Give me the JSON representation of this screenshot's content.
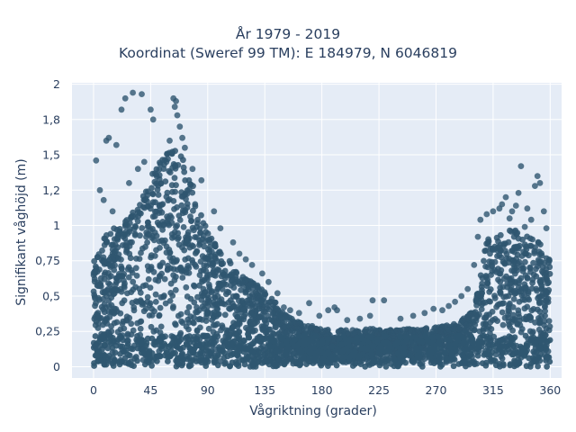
{
  "chart_data": {
    "type": "scatter",
    "title": [
      "År 1979 - 2019",
      "Koordinat (Sweref 99 TM): E 184979, N 6046819"
    ],
    "xlabel": "Vågriktning (grader)",
    "ylabel": "Signifikant våghöjd (m)",
    "xlim": [
      -17,
      369
    ],
    "ylim": [
      -0.08,
      2.01
    ],
    "xticks": [
      0,
      45,
      90,
      135,
      180,
      225,
      270,
      315,
      360
    ],
    "xtick_labels": [
      "0",
      "45",
      "90",
      "135",
      "180",
      "225",
      "270",
      "315",
      "360"
    ],
    "yticks": [
      0,
      0.25,
      0.5,
      0.75,
      1,
      1.25,
      1.5,
      1.75,
      2
    ],
    "ytick_labels": [
      "0",
      "0,25",
      "0,5",
      "0,75",
      "1",
      "1,2",
      "1,5",
      "1,8",
      "2"
    ],
    "grid": true,
    "marker_color": "#2f5670",
    "background": "#e5ecf6",
    "envelope": {
      "x": [
        0,
        10,
        20,
        30,
        40,
        50,
        60,
        70,
        80,
        90,
        100,
        110,
        120,
        130,
        140,
        150,
        160,
        170,
        180,
        190,
        200,
        210,
        220,
        230,
        240,
        250,
        260,
        270,
        280,
        290,
        300,
        310,
        320,
        330,
        340,
        350,
        360
      ],
      "ymax": [
        0.75,
        0.95,
        1.0,
        1.1,
        1.25,
        1.45,
        1.55,
        1.5,
        1.25,
        0.95,
        0.82,
        0.72,
        0.62,
        0.58,
        0.5,
        0.38,
        0.32,
        0.3,
        0.27,
        0.26,
        0.26,
        0.26,
        0.27,
        0.26,
        0.26,
        0.27,
        0.27,
        0.28,
        0.3,
        0.33,
        0.4,
        0.9,
        0.95,
        0.98,
        0.95,
        0.9,
        0.75
      ]
    },
    "outliers": [
      {
        "x": 2,
        "y": 1.46
      },
      {
        "x": 10,
        "y": 1.6
      },
      {
        "x": 12,
        "y": 1.62
      },
      {
        "x": 18,
        "y": 1.57
      },
      {
        "x": 22,
        "y": 1.82
      },
      {
        "x": 25,
        "y": 1.9
      },
      {
        "x": 31,
        "y": 1.94
      },
      {
        "x": 38,
        "y": 1.93
      },
      {
        "x": 45,
        "y": 1.82
      },
      {
        "x": 47,
        "y": 1.75
      },
      {
        "x": 63,
        "y": 1.9
      },
      {
        "x": 65,
        "y": 1.88
      },
      {
        "x": 64,
        "y": 1.84
      },
      {
        "x": 66,
        "y": 1.78
      },
      {
        "x": 68,
        "y": 1.7
      },
      {
        "x": 70,
        "y": 1.62
      },
      {
        "x": 60,
        "y": 1.6
      },
      {
        "x": 72,
        "y": 1.55
      },
      {
        "x": 78,
        "y": 1.4
      },
      {
        "x": 85,
        "y": 1.32
      },
      {
        "x": 40,
        "y": 1.45
      },
      {
        "x": 35,
        "y": 1.4
      },
      {
        "x": 28,
        "y": 1.3
      },
      {
        "x": 8,
        "y": 1.18
      },
      {
        "x": 5,
        "y": 1.25
      },
      {
        "x": 15,
        "y": 1.1
      },
      {
        "x": 95,
        "y": 1.1
      },
      {
        "x": 100,
        "y": 0.98
      },
      {
        "x": 110,
        "y": 0.88
      },
      {
        "x": 115,
        "y": 0.8
      },
      {
        "x": 120,
        "y": 0.76
      },
      {
        "x": 125,
        "y": 0.72
      },
      {
        "x": 133,
        "y": 0.66
      },
      {
        "x": 138,
        "y": 0.6
      },
      {
        "x": 145,
        "y": 0.52
      },
      {
        "x": 150,
        "y": 0.42
      },
      {
        "x": 155,
        "y": 0.4
      },
      {
        "x": 162,
        "y": 0.38
      },
      {
        "x": 170,
        "y": 0.45
      },
      {
        "x": 178,
        "y": 0.36
      },
      {
        "x": 185,
        "y": 0.4
      },
      {
        "x": 190,
        "y": 0.42
      },
      {
        "x": 192,
        "y": 0.4
      },
      {
        "x": 200,
        "y": 0.33
      },
      {
        "x": 210,
        "y": 0.34
      },
      {
        "x": 220,
        "y": 0.47
      },
      {
        "x": 229,
        "y": 0.47
      },
      {
        "x": 218,
        "y": 0.36
      },
      {
        "x": 242,
        "y": 0.34
      },
      {
        "x": 252,
        "y": 0.36
      },
      {
        "x": 261,
        "y": 0.38
      },
      {
        "x": 268,
        "y": 0.41
      },
      {
        "x": 275,
        "y": 0.4
      },
      {
        "x": 280,
        "y": 0.43
      },
      {
        "x": 285,
        "y": 0.46
      },
      {
        "x": 290,
        "y": 0.5
      },
      {
        "x": 295,
        "y": 0.55
      },
      {
        "x": 300,
        "y": 0.72
      },
      {
        "x": 303,
        "y": 0.92
      },
      {
        "x": 305,
        "y": 1.04
      },
      {
        "x": 310,
        "y": 1.08
      },
      {
        "x": 315,
        "y": 1.1
      },
      {
        "x": 320,
        "y": 1.12
      },
      {
        "x": 322,
        "y": 1.15
      },
      {
        "x": 325,
        "y": 1.2
      },
      {
        "x": 330,
        "y": 1.1
      },
      {
        "x": 333,
        "y": 1.14
      },
      {
        "x": 335,
        "y": 1.23
      },
      {
        "x": 337,
        "y": 1.42
      },
      {
        "x": 342,
        "y": 1.12
      },
      {
        "x": 345,
        "y": 1.04
      },
      {
        "x": 348,
        "y": 1.28
      },
      {
        "x": 350,
        "y": 1.35
      },
      {
        "x": 352,
        "y": 1.3
      },
      {
        "x": 355,
        "y": 1.1
      },
      {
        "x": 357,
        "y": 0.98
      },
      {
        "x": 340,
        "y": 0.99
      },
      {
        "x": 328,
        "y": 1.05
      }
    ]
  }
}
